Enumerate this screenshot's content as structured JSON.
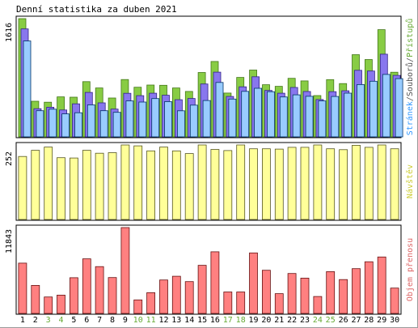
{
  "chart_data": {
    "type": "bar",
    "title": "Denní statistika za duben 2021",
    "categories": [
      "1",
      "2",
      "3",
      "4",
      "5",
      "6",
      "7",
      "8",
      "9",
      "10",
      "11",
      "12",
      "13",
      "14",
      "15",
      "16",
      "17",
      "18",
      "19",
      "20",
      "21",
      "22",
      "23",
      "24",
      "25",
      "26",
      "27",
      "28",
      "29",
      "30"
    ],
    "weekend_days": [
      "3",
      "4",
      "10",
      "11",
      "17",
      "18",
      "24",
      "25"
    ],
    "panels": [
      {
        "id": "top",
        "ylim": [
          0,
          1616
        ],
        "max_label": "1616",
        "legend": [
          {
            "text": "Stránek",
            "color": "#3399ff"
          },
          {
            "text": "/",
            "color": "#555555"
          },
          {
            "text": "Souborů",
            "color": "#555555"
          },
          {
            "text": "/",
            "color": "#555555"
          },
          {
            "text": "Přístupů",
            "color": "#66aa33"
          }
        ],
        "series": [
          {
            "name": "Přístupů",
            "color": "#88cc44",
            "values": [
              1616,
              487,
              474,
              547,
              542,
              755,
              669,
              531,
              784,
              679,
              708,
              705,
              668,
              621,
              880,
              1031,
              599,
              812,
              913,
              713,
              691,
              800,
              765,
              564,
              782,
              728,
              1124,
              1057,
              1465,
              883
            ]
          },
          {
            "name": "Souborů",
            "color": "#8877ee",
            "values": [
              1475,
              385,
              405,
              367,
              452,
              608,
              465,
              380,
              596,
              563,
              597,
              569,
              508,
              525,
              723,
              884,
              552,
              684,
              821,
              634,
              597,
              675,
              620,
              510,
              618,
              630,
              910,
              900,
              1130,
              840
            ]
          },
          {
            "name": "Stránek",
            "color": "#99ccff",
            "values": [
              1310,
              357,
              379,
              314,
              330,
              437,
              358,
              335,
              491,
              476,
              524,
              481,
              356,
              434,
              497,
              744,
              517,
              622,
              664,
              618,
              546,
              574,
              555,
              491,
              552,
              598,
              715,
              760,
              853,
              796
            ]
          }
        ]
      },
      {
        "id": "mid",
        "ylim": [
          0,
          252
        ],
        "max_label": "252",
        "legend": [
          {
            "text": "Návštěv",
            "color": "#cccc33"
          }
        ],
        "series": [
          {
            "name": "Návštěv",
            "color": "#ffff99",
            "values": [
              213,
              234,
              245,
              209,
              208,
              234,
              224,
              226,
              252,
              249,
              232,
              245,
              232,
              223,
              252,
              237,
              233,
              252,
              239,
              239,
              238,
              244,
              244,
              252,
              239,
              236,
              251,
              244,
              252,
              239
            ]
          }
        ]
      },
      {
        "id": "bottom",
        "ylim": [
          0,
          11843
        ],
        "max_label": "11843",
        "legend": [
          {
            "text": "Objem přenosu",
            "color": "#dd6666"
          }
        ],
        "series": [
          {
            "name": "Objem přenosu",
            "color": "#ff8080",
            "values": [
              6940,
              3867,
              2272,
              2527,
              4926,
              7533,
              6461,
              4950,
              11843,
              1870,
              2859,
              4614,
              5128,
              4389,
              6632,
              8498,
              2963,
              2963,
              8348,
              5957,
              2724,
              5511,
              4866,
              2330,
              5770,
              4669,
              6183,
              7124,
              7785,
              3498
            ]
          }
        ]
      }
    ]
  }
}
